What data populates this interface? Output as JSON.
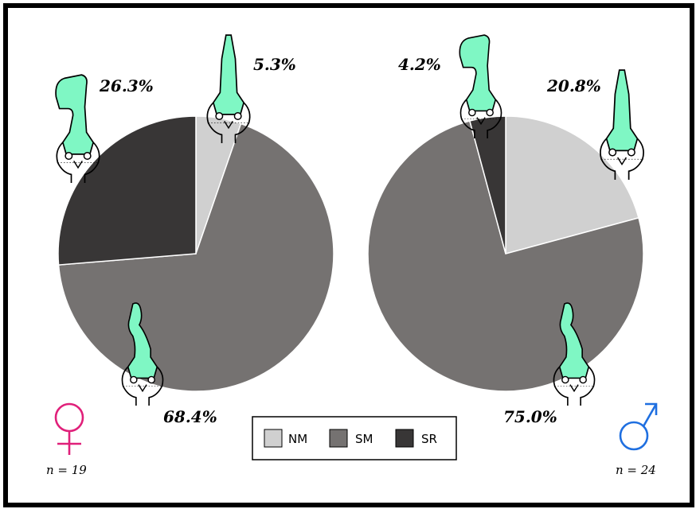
{
  "chart_data": [
    {
      "type": "pie",
      "group": "female",
      "symbol": "♀",
      "symbol_color": "#e0207a",
      "n_label": "n = 19",
      "slices": [
        {
          "category": "NM",
          "value": 5.3,
          "label": "5.3%"
        },
        {
          "category": "SM",
          "value": 68.4,
          "label": "68.4%"
        },
        {
          "category": "SR",
          "value": 26.3,
          "label": "26.3%"
        }
      ]
    },
    {
      "type": "pie",
      "group": "male",
      "symbol": "♂",
      "symbol_color": "#1f6fe0",
      "n_label": "n = 24",
      "slices": [
        {
          "category": "NM",
          "value": 20.8,
          "label": "20.8%"
        },
        {
          "category": "SM",
          "value": 75.0,
          "label": "75.0%"
        },
        {
          "category": "SR",
          "value": 4.2,
          "label": "4.2%"
        }
      ]
    }
  ],
  "legend": [
    {
      "name": "NM",
      "color": "#d0d0d0"
    },
    {
      "name": "SM",
      "color": "#757271"
    },
    {
      "name": "SR",
      "color": "#383636"
    }
  ],
  "colors": {
    "NM": "#d0d0d0",
    "SM": "#757271",
    "SR": "#383636",
    "head_fill": "#7ff7c4"
  },
  "icons": [
    "head-drawing-icon",
    "female-symbol-icon",
    "male-symbol-icon"
  ]
}
